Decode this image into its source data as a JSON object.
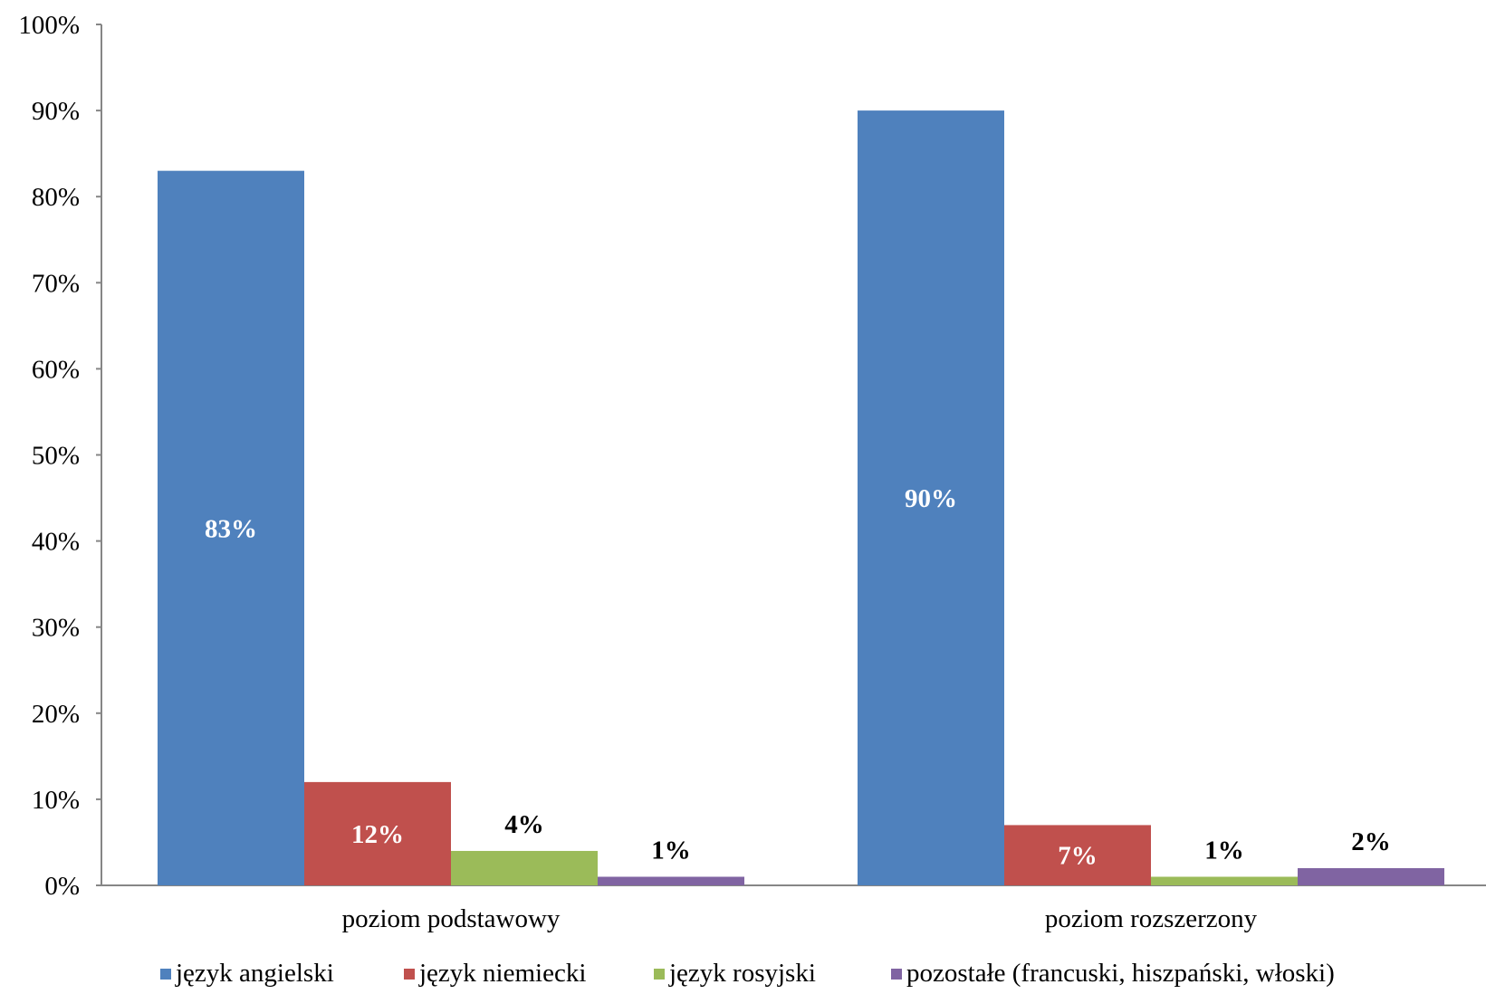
{
  "chart_data": {
    "type": "bar",
    "title": "",
    "xlabel": "",
    "ylabel": "",
    "ylim": [
      0,
      100
    ],
    "y_ticks": [
      "0%",
      "10%",
      "20%",
      "30%",
      "40%",
      "50%",
      "60%",
      "70%",
      "80%",
      "90%",
      "100%"
    ],
    "categories": [
      "poziom podstawowy",
      "poziom rozszerzony"
    ],
    "series": [
      {
        "name": "język angielski",
        "color": "#4f81bd",
        "values": [
          83,
          90
        ],
        "labels": [
          "83%",
          "90%"
        ],
        "label_style": "inside-white"
      },
      {
        "name": "język niemiecki",
        "color": "#c0504d",
        "values": [
          12,
          7
        ],
        "labels": [
          "12%",
          "7%"
        ],
        "label_style": "inside-white"
      },
      {
        "name": "język rosyjski",
        "color": "#9bbb59",
        "values": [
          4,
          1
        ],
        "labels": [
          "4%",
          "1%"
        ],
        "label_style": "above-black"
      },
      {
        "name": "pozostałe (francuski, hiszpański, włoski)",
        "color": "#8064a2",
        "values": [
          1,
          2
        ],
        "labels": [
          "1%",
          "2%"
        ],
        "label_style": "above-black"
      }
    ],
    "grid": false,
    "legend_position": "bottom"
  }
}
